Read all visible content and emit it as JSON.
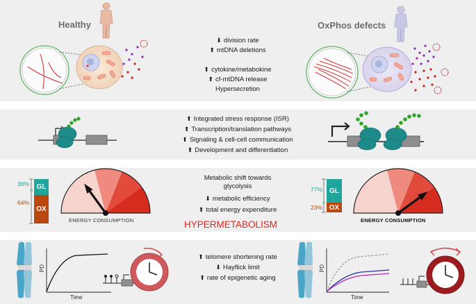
{
  "healthy_title": "Healthy",
  "oxphos_title": "OxPhos defects",
  "panel1": {
    "lines": [
      {
        "arrow": "down",
        "text": "division rate"
      },
      {
        "arrow": "up",
        "text": "mtDNA deletions"
      },
      {
        "arrow": "up",
        "text": "cytokine/metabokine"
      },
      {
        "arrow": "up",
        "text": "cf-mtDNA release"
      },
      {
        "arrow": "",
        "text": "Hypersecretion"
      }
    ]
  },
  "panel2": {
    "lines": [
      {
        "arrow": "up",
        "text": "Integrated stress response (ISR)"
      },
      {
        "arrow": "up",
        "text": "Transcription/translation pathways"
      },
      {
        "arrow": "up",
        "text": "Signaling & cell-cell communication"
      },
      {
        "arrow": "up",
        "text": "Development and differentiation"
      }
    ]
  },
  "panel3": {
    "lines": [
      {
        "arrow": "",
        "text": "Metabolic shift towards"
      },
      {
        "arrow": "",
        "text": "glycolysis"
      },
      {
        "arrow": "down",
        "text": "metabolic efficiency"
      },
      {
        "arrow": "up",
        "text": "total energy expenditure"
      }
    ],
    "hyper": "HYPERMETABOLISM",
    "left": {
      "gl_label": "GL",
      "ox_label": "OX",
      "gl_pct": "36%",
      "ox_pct": "64%",
      "gl_fraction": 0.36,
      "caption": "ENERGY CONSUMPTION",
      "needle_level": 0.3
    },
    "right": {
      "gl_label": "GL",
      "ox_label": "OX",
      "gl_pct": "77%",
      "ox_pct": "23%",
      "gl_fraction": 0.77,
      "caption": "ENERGY CONSUMPTION",
      "needle_level": 0.8
    }
  },
  "panel4": {
    "lines": [
      {
        "arrow": "up",
        "text": "telomere shortening rate"
      },
      {
        "arrow": "down",
        "text": "Hayflick limit"
      },
      {
        "arrow": "up",
        "text": "rate of epigenetic aging"
      }
    ],
    "pd_label": "PD",
    "time_label": "Time"
  },
  "colors": {
    "panel_bg": "#efefef",
    "red": "#e2231a",
    "teal": "#1fa59c",
    "brown": "#b9480f",
    "ribosome": "#1f8a8a",
    "green_chain": "#2fa52a",
    "purple_dots": "#8a2bb8",
    "red_dots": "#c0231a",
    "chromosome": "#4aa6c8"
  },
  "icons": [
    "human-silhouette-icon",
    "mitochondria-cell-icon",
    "ribosome-icon",
    "dna-gene-icon",
    "gauge-icon",
    "chromosome-icon",
    "clock-icon"
  ]
}
